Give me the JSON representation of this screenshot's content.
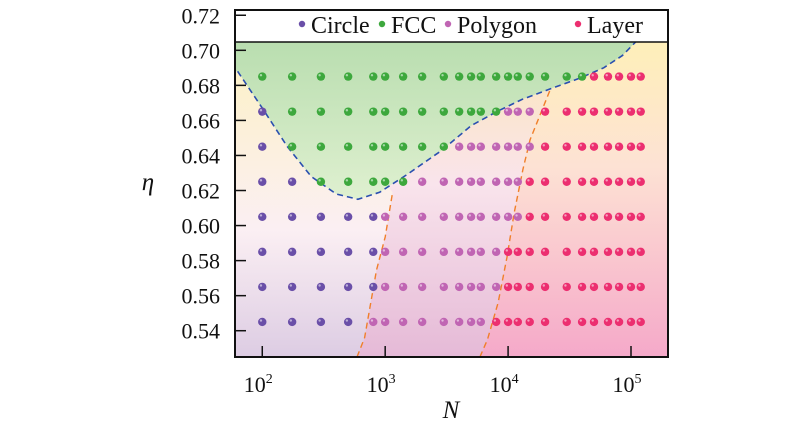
{
  "chart_data": {
    "type": "scatter",
    "title": "",
    "xlabel": "N",
    "ylabel": "η",
    "xscale": "log",
    "xlim": [
      60,
      200000
    ],
    "ylim": [
      0.525,
      0.723
    ],
    "xticks": [
      {
        "value": 100,
        "base": "10",
        "exp": "2"
      },
      {
        "value": 1000,
        "base": "10",
        "exp": "3"
      },
      {
        "value": 10000,
        "base": "10",
        "exp": "4"
      },
      {
        "value": 100000,
        "base": "10",
        "exp": "5"
      }
    ],
    "yticks": [
      "0.54",
      "0.56",
      "0.58",
      "0.60",
      "0.62",
      "0.64",
      "0.66",
      "0.68",
      "0.70",
      "0.72"
    ],
    "grid": false,
    "legend_placement": "top-right",
    "legend": [
      {
        "key": "C",
        "name": "Circle",
        "color": "#6a4fa8"
      },
      {
        "key": "F",
        "name": "FCC",
        "color": "#3da83d"
      },
      {
        "key": "P",
        "name": "Polygon",
        "color": "#c065b3"
      },
      {
        "key": "L",
        "name": "Layer",
        "color": "#ec2f70"
      }
    ],
    "x_values": [
      100,
      175,
      300,
      500,
      800,
      1000,
      1400,
      2000,
      3000,
      4000,
      5000,
      6000,
      8000,
      10000,
      12000,
      15000,
      20000,
      30000,
      40000,
      50000,
      65000,
      80000,
      100000,
      120000
    ],
    "rows": [
      {
        "eta": 0.685,
        "phases": "FFFFFFFFFFFFFFFFFFFLLLLL"
      },
      {
        "eta": 0.665,
        "phases": "CFFFFFFFFFFFFPPPLLLLLLLL"
      },
      {
        "eta": 0.645,
        "phases": "CFFFFFFFFPPPPPPPLLLLLLLL"
      },
      {
        "eta": 0.625,
        "phases": "CCFFFFFPPPPPPPPLLLLLLLLL"
      },
      {
        "eta": 0.605,
        "phases": "CCCCCPPPPPPPPPPLLLLLLLLL"
      },
      {
        "eta": 0.585,
        "phases": "CCCCCPPPPPPPPLLLLLLLLLLL"
      },
      {
        "eta": 0.565,
        "phases": "CCCCCPPPPPPPPLLLLLLLLLLL"
      },
      {
        "eta": 0.545,
        "phases": "CCCCPPPPPPPPLLLLLLLLLLLL"
      }
    ],
    "boundaries": {
      "fcc": {
        "color": "#2a4fb0",
        "points": [
          [
            63,
            0.688
          ],
          [
            100,
            0.667
          ],
          [
            160,
            0.645
          ],
          [
            250,
            0.628
          ],
          [
            400,
            0.618
          ],
          [
            600,
            0.615
          ],
          [
            900,
            0.619
          ],
          [
            1500,
            0.629
          ],
          [
            2900,
            0.643
          ],
          [
            5000,
            0.657
          ],
          [
            8100,
            0.665
          ],
          [
            13000,
            0.672
          ],
          [
            22000,
            0.678
          ],
          [
            38000,
            0.684
          ],
          [
            60000,
            0.69
          ],
          [
            85000,
            0.697
          ],
          [
            110000,
            0.705
          ]
        ]
      },
      "circle_polygon": {
        "color": "#f07f2a",
        "points": [
          [
            590,
            0.525
          ],
          [
            680,
            0.536
          ],
          [
            850,
            0.5746
          ],
          [
            1000,
            0.5935
          ],
          [
            1150,
            0.619
          ]
        ]
      },
      "polygon_layer": {
        "color": "#f07f2a",
        "points": [
          [
            5900,
            0.525
          ],
          [
            6800,
            0.535
          ],
          [
            8300,
            0.556
          ],
          [
            9800,
            0.582
          ],
          [
            11200,
            0.607
          ],
          [
            13200,
            0.632
          ],
          [
            15100,
            0.649
          ],
          [
            22000,
            0.6775
          ]
        ]
      }
    }
  }
}
